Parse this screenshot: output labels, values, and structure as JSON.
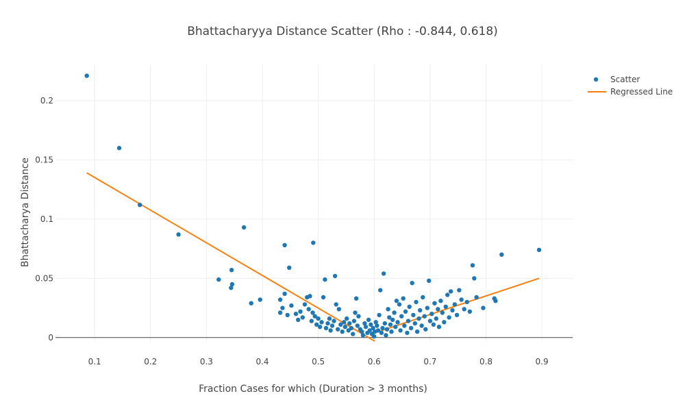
{
  "chart_data": {
    "type": "scatter",
    "title": "Bhattacharyya Distance Scatter  (Rho : -0.844, 0.618)",
    "xlabel": "Fraction Cases for which (Duration > 3 months)",
    "ylabel": "Bhattacharya Distance",
    "xlim": [
      0.03,
      0.955
    ],
    "ylim": [
      -0.003,
      0.23
    ],
    "x_ticks": [
      0.1,
      0.2,
      0.3,
      0.4,
      0.5,
      0.6,
      0.7,
      0.8,
      0.9
    ],
    "x_tick_labels": [
      "0.1",
      "0.2",
      "0.3",
      "0.4",
      "0.5",
      "0.6",
      "0.7",
      "0.8",
      "0.9"
    ],
    "y_ticks": [
      0,
      0.05,
      0.1,
      0.15,
      0.2
    ],
    "y_tick_labels": [
      "0",
      "0.05",
      "0.1",
      "0.15",
      "0.2"
    ],
    "grid": true,
    "legend_position": "top-right",
    "series": [
      {
        "name": "Scatter",
        "kind": "markers",
        "color": "#1f77b4",
        "points": [
          [
            0.086,
            0.221
          ],
          [
            0.144,
            0.16
          ],
          [
            0.181,
            0.112
          ],
          [
            0.25,
            0.087
          ],
          [
            0.367,
            0.093
          ],
          [
            0.322,
            0.049
          ],
          [
            0.345,
            0.057
          ],
          [
            0.344,
            0.042
          ],
          [
            0.346,
            0.045
          ],
          [
            0.38,
            0.029
          ],
          [
            0.396,
            0.032
          ],
          [
            0.432,
            0.032
          ],
          [
            0.44,
            0.078
          ],
          [
            0.448,
            0.059
          ],
          [
            0.491,
            0.08
          ],
          [
            0.432,
            0.021
          ],
          [
            0.436,
            0.025
          ],
          [
            0.44,
            0.037
          ],
          [
            0.445,
            0.019
          ],
          [
            0.452,
            0.027
          ],
          [
            0.46,
            0.02
          ],
          [
            0.464,
            0.015
          ],
          [
            0.468,
            0.022
          ],
          [
            0.472,
            0.017
          ],
          [
            0.476,
            0.028
          ],
          [
            0.48,
            0.034
          ],
          [
            0.483,
            0.024
          ],
          [
            0.485,
            0.035
          ],
          [
            0.488,
            0.014
          ],
          [
            0.49,
            0.021
          ],
          [
            0.494,
            0.018
          ],
          [
            0.497,
            0.011
          ],
          [
            0.5,
            0.016
          ],
          [
            0.503,
            0.009
          ],
          [
            0.506,
            0.013
          ],
          [
            0.509,
            0.034
          ],
          [
            0.512,
            0.049
          ],
          [
            0.514,
            0.008
          ],
          [
            0.517,
            0.012
          ],
          [
            0.52,
            0.016
          ],
          [
            0.522,
            0.006
          ],
          [
            0.525,
            0.01
          ],
          [
            0.528,
            0.014
          ],
          [
            0.53,
            0.052
          ],
          [
            0.532,
            0.028
          ],
          [
            0.535,
            0.007
          ],
          [
            0.537,
            0.024
          ],
          [
            0.54,
            0.011
          ],
          [
            0.543,
            0.005
          ],
          [
            0.546,
            0.013
          ],
          [
            0.548,
            0.009
          ],
          [
            0.551,
            0.016
          ],
          [
            0.554,
            0.006
          ],
          [
            0.556,
            0.012
          ],
          [
            0.559,
            0.008
          ],
          [
            0.562,
            0.003
          ],
          [
            0.564,
            0.014
          ],
          [
            0.566,
            0.021
          ],
          [
            0.568,
            0.033
          ],
          [
            0.57,
            0.01
          ],
          [
            0.572,
            0.018
          ],
          [
            0.575,
            0.007
          ],
          [
            0.578,
            0.005
          ],
          [
            0.58,
            0.002
          ],
          [
            0.583,
            0.012
          ],
          [
            0.585,
            0.009
          ],
          [
            0.588,
            0.004
          ],
          [
            0.59,
            0.015
          ],
          [
            0.592,
            0.006
          ],
          [
            0.594,
            0.011
          ],
          [
            0.596,
            0.003
          ],
          [
            0.598,
            0.008
          ],
          [
            0.6,
            0.001
          ],
          [
            0.601,
            0.005
          ],
          [
            0.603,
            0.013
          ],
          [
            0.605,
            0.01
          ],
          [
            0.607,
            0.006
          ],
          [
            0.609,
            0.019
          ],
          [
            0.611,
            0.04
          ],
          [
            0.613,
            0.004
          ],
          [
            0.615,
            0.008
          ],
          [
            0.617,
            0.054
          ],
          [
            0.619,
            0.012
          ],
          [
            0.621,
            0.002
          ],
          [
            0.623,
            0.007
          ],
          [
            0.625,
            0.024
          ],
          [
            0.627,
            0.017
          ],
          [
            0.629,
            0.011
          ],
          [
            0.631,
            0.005
          ],
          [
            0.633,
            0.015
          ],
          [
            0.636,
            0.021
          ],
          [
            0.638,
            0.009
          ],
          [
            0.64,
            0.031
          ],
          [
            0.642,
            0.013
          ],
          [
            0.645,
            0.028
          ],
          [
            0.647,
            0.006
          ],
          [
            0.649,
            0.018
          ],
          [
            0.652,
            0.033
          ],
          [
            0.654,
            0.01
          ],
          [
            0.656,
            0.022
          ],
          [
            0.659,
            0.004
          ],
          [
            0.661,
            0.014
          ],
          [
            0.663,
            0.026
          ],
          [
            0.666,
            0.008
          ],
          [
            0.668,
            0.046
          ],
          [
            0.67,
            0.019
          ],
          [
            0.673,
            0.012
          ],
          [
            0.675,
            0.03
          ],
          [
            0.677,
            0.005
          ],
          [
            0.68,
            0.016
          ],
          [
            0.682,
            0.023
          ],
          [
            0.685,
            0.01
          ],
          [
            0.687,
            0.034
          ],
          [
            0.69,
            0.018
          ],
          [
            0.692,
            0.007
          ],
          [
            0.695,
            0.025
          ],
          [
            0.698,
            0.048
          ],
          [
            0.7,
            0.014
          ],
          [
            0.703,
            0.02
          ],
          [
            0.706,
            0.011
          ],
          [
            0.708,
            0.029
          ],
          [
            0.711,
            0.016
          ],
          [
            0.714,
            0.024
          ],
          [
            0.716,
            0.009
          ],
          [
            0.719,
            0.031
          ],
          [
            0.722,
            0.021
          ],
          [
            0.725,
            0.013
          ],
          [
            0.728,
            0.026
          ],
          [
            0.731,
            0.036
          ],
          [
            0.734,
            0.017
          ],
          [
            0.737,
            0.039
          ],
          [
            0.74,
            0.023
          ],
          [
            0.744,
            0.028
          ],
          [
            0.748,
            0.019
          ],
          [
            0.752,
            0.04
          ],
          [
            0.756,
            0.032
          ],
          [
            0.761,
            0.024
          ],
          [
            0.766,
            0.03
          ],
          [
            0.771,
            0.022
          ],
          [
            0.776,
            0.061
          ],
          [
            0.779,
            0.05
          ],
          [
            0.783,
            0.034
          ],
          [
            0.795,
            0.025
          ],
          [
            0.815,
            0.033
          ],
          [
            0.817,
            0.031
          ],
          [
            0.828,
            0.07
          ],
          [
            0.895,
            0.074
          ]
        ]
      },
      {
        "name": "Regressed Line",
        "kind": "lines",
        "color": "#ff7f0e",
        "segments": [
          [
            [
              0.086,
              0.139
            ],
            [
              0.601,
              -0.003
            ]
          ],
          [
            [
              0.601,
              0.004
            ],
            [
              0.895,
              0.05
            ]
          ]
        ]
      }
    ]
  }
}
